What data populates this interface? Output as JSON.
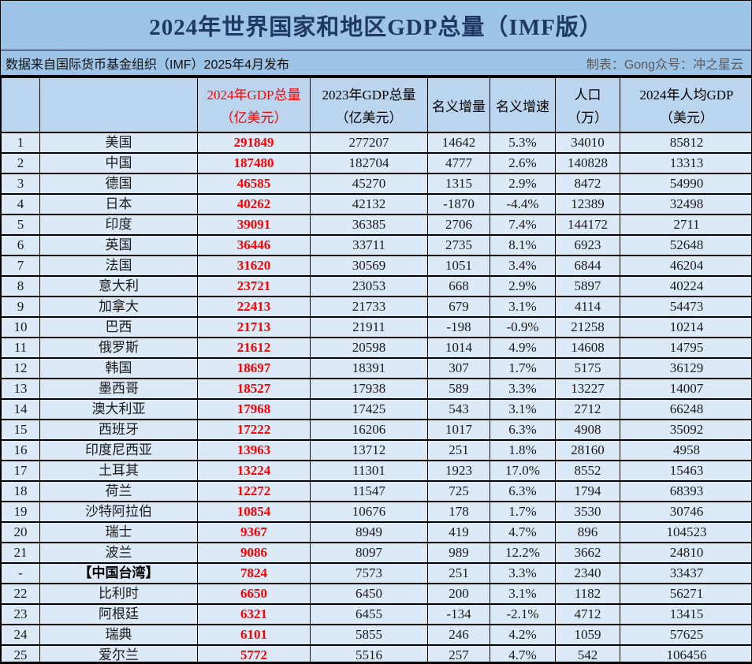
{
  "title": "2024年世界国家和地区GDP总量（IMF版）",
  "subtitle": {
    "left": "数据来自国际货币基金组织（IMF）2025年4月发布",
    "right": "制表：Gong众号：冲之星云"
  },
  "colors": {
    "title_bg": "#9DC3E6",
    "header_bg": "#BCD5EE",
    "row_bg": "#DCE9F6",
    "accent_red": "#FF0000",
    "title_text": "#1F3864",
    "right_note_text": "#595959"
  },
  "table": {
    "headers": [
      {
        "line1": "",
        "line2": ""
      },
      {
        "line1": "",
        "line2": ""
      },
      {
        "line1": "2024年GDP总量",
        "line2": "（亿美元）"
      },
      {
        "line1": "2023年GDP总量",
        "line2": "（亿美元）"
      },
      {
        "line1": "名义增量",
        "line2": ""
      },
      {
        "line1": "名义增速",
        "line2": ""
      },
      {
        "line1": "人口",
        "line2": "（万）"
      },
      {
        "line1": "2024年人均GDP",
        "line2": "（美元）"
      }
    ]
  },
  "chart_data": {
    "type": "table",
    "title": "2024年世界国家和地区GDP总量（IMF版）",
    "columns": [
      "",
      "",
      "2024年GDP总量（亿美元）",
      "2023年GDP总量（亿美元）",
      "名义增量",
      "名义增速",
      "人口（万）",
      "2024年人均GDP（美元）"
    ],
    "rows": [
      [
        "1",
        "美国",
        "291849",
        "277207",
        "14642",
        "5.3%",
        "34010",
        "85812"
      ],
      [
        "2",
        "中国",
        "187480",
        "182704",
        "4777",
        "2.6%",
        "140828",
        "13313"
      ],
      [
        "3",
        "德国",
        "46585",
        "45270",
        "1315",
        "2.9%",
        "8472",
        "54990"
      ],
      [
        "4",
        "日本",
        "40262",
        "42132",
        "-1870",
        "-4.4%",
        "12389",
        "32498"
      ],
      [
        "5",
        "印度",
        "39091",
        "36385",
        "2706",
        "7.4%",
        "144172",
        "2711"
      ],
      [
        "6",
        "英国",
        "36446",
        "33711",
        "2735",
        "8.1%",
        "6923",
        "52648"
      ],
      [
        "7",
        "法国",
        "31620",
        "30569",
        "1051",
        "3.4%",
        "6844",
        "46204"
      ],
      [
        "8",
        "意大利",
        "23721",
        "23053",
        "668",
        "2.9%",
        "5897",
        "40224"
      ],
      [
        "9",
        "加拿大",
        "22413",
        "21733",
        "679",
        "3.1%",
        "4114",
        "54473"
      ],
      [
        "10",
        "巴西",
        "21713",
        "21911",
        "-198",
        "-0.9%",
        "21258",
        "10214"
      ],
      [
        "11",
        "俄罗斯",
        "21612",
        "20598",
        "1014",
        "4.9%",
        "14608",
        "14795"
      ],
      [
        "12",
        "韩国",
        "18697",
        "18391",
        "307",
        "1.7%",
        "5175",
        "36129"
      ],
      [
        "13",
        "墨西哥",
        "18527",
        "17938",
        "589",
        "3.3%",
        "13227",
        "14007"
      ],
      [
        "14",
        "澳大利亚",
        "17968",
        "17425",
        "543",
        "3.1%",
        "2712",
        "66248"
      ],
      [
        "15",
        "西班牙",
        "17222",
        "16206",
        "1017",
        "6.3%",
        "4908",
        "35092"
      ],
      [
        "16",
        "印度尼西亚",
        "13963",
        "13712",
        "251",
        "1.8%",
        "28160",
        "4958"
      ],
      [
        "17",
        "土耳其",
        "13224",
        "11301",
        "1923",
        "17.0%",
        "8552",
        "15463"
      ],
      [
        "18",
        "荷兰",
        "12272",
        "11547",
        "725",
        "6.3%",
        "1794",
        "68393"
      ],
      [
        "19",
        "沙特阿拉伯",
        "10854",
        "10676",
        "178",
        "1.7%",
        "3530",
        "30746"
      ],
      [
        "20",
        "瑞士",
        "9367",
        "8949",
        "419",
        "4.7%",
        "896",
        "104523"
      ],
      [
        "21",
        "波兰",
        "9086",
        "8097",
        "989",
        "12.2%",
        "3662",
        "24810"
      ],
      [
        "-",
        "【中国台湾】",
        "7824",
        "7573",
        "251",
        "3.3%",
        "2340",
        "33437"
      ],
      [
        "22",
        "比利时",
        "6650",
        "6450",
        "200",
        "3.1%",
        "1182",
        "56271"
      ],
      [
        "23",
        "阿根廷",
        "6321",
        "6455",
        "-134",
        "-2.1%",
        "4712",
        "13415"
      ],
      [
        "24",
        "瑞典",
        "6101",
        "5855",
        "246",
        "4.2%",
        "1059",
        "57625"
      ],
      [
        "25",
        "爱尔兰",
        "5772",
        "5516",
        "257",
        "4.7%",
        "542",
        "106456"
      ]
    ]
  }
}
